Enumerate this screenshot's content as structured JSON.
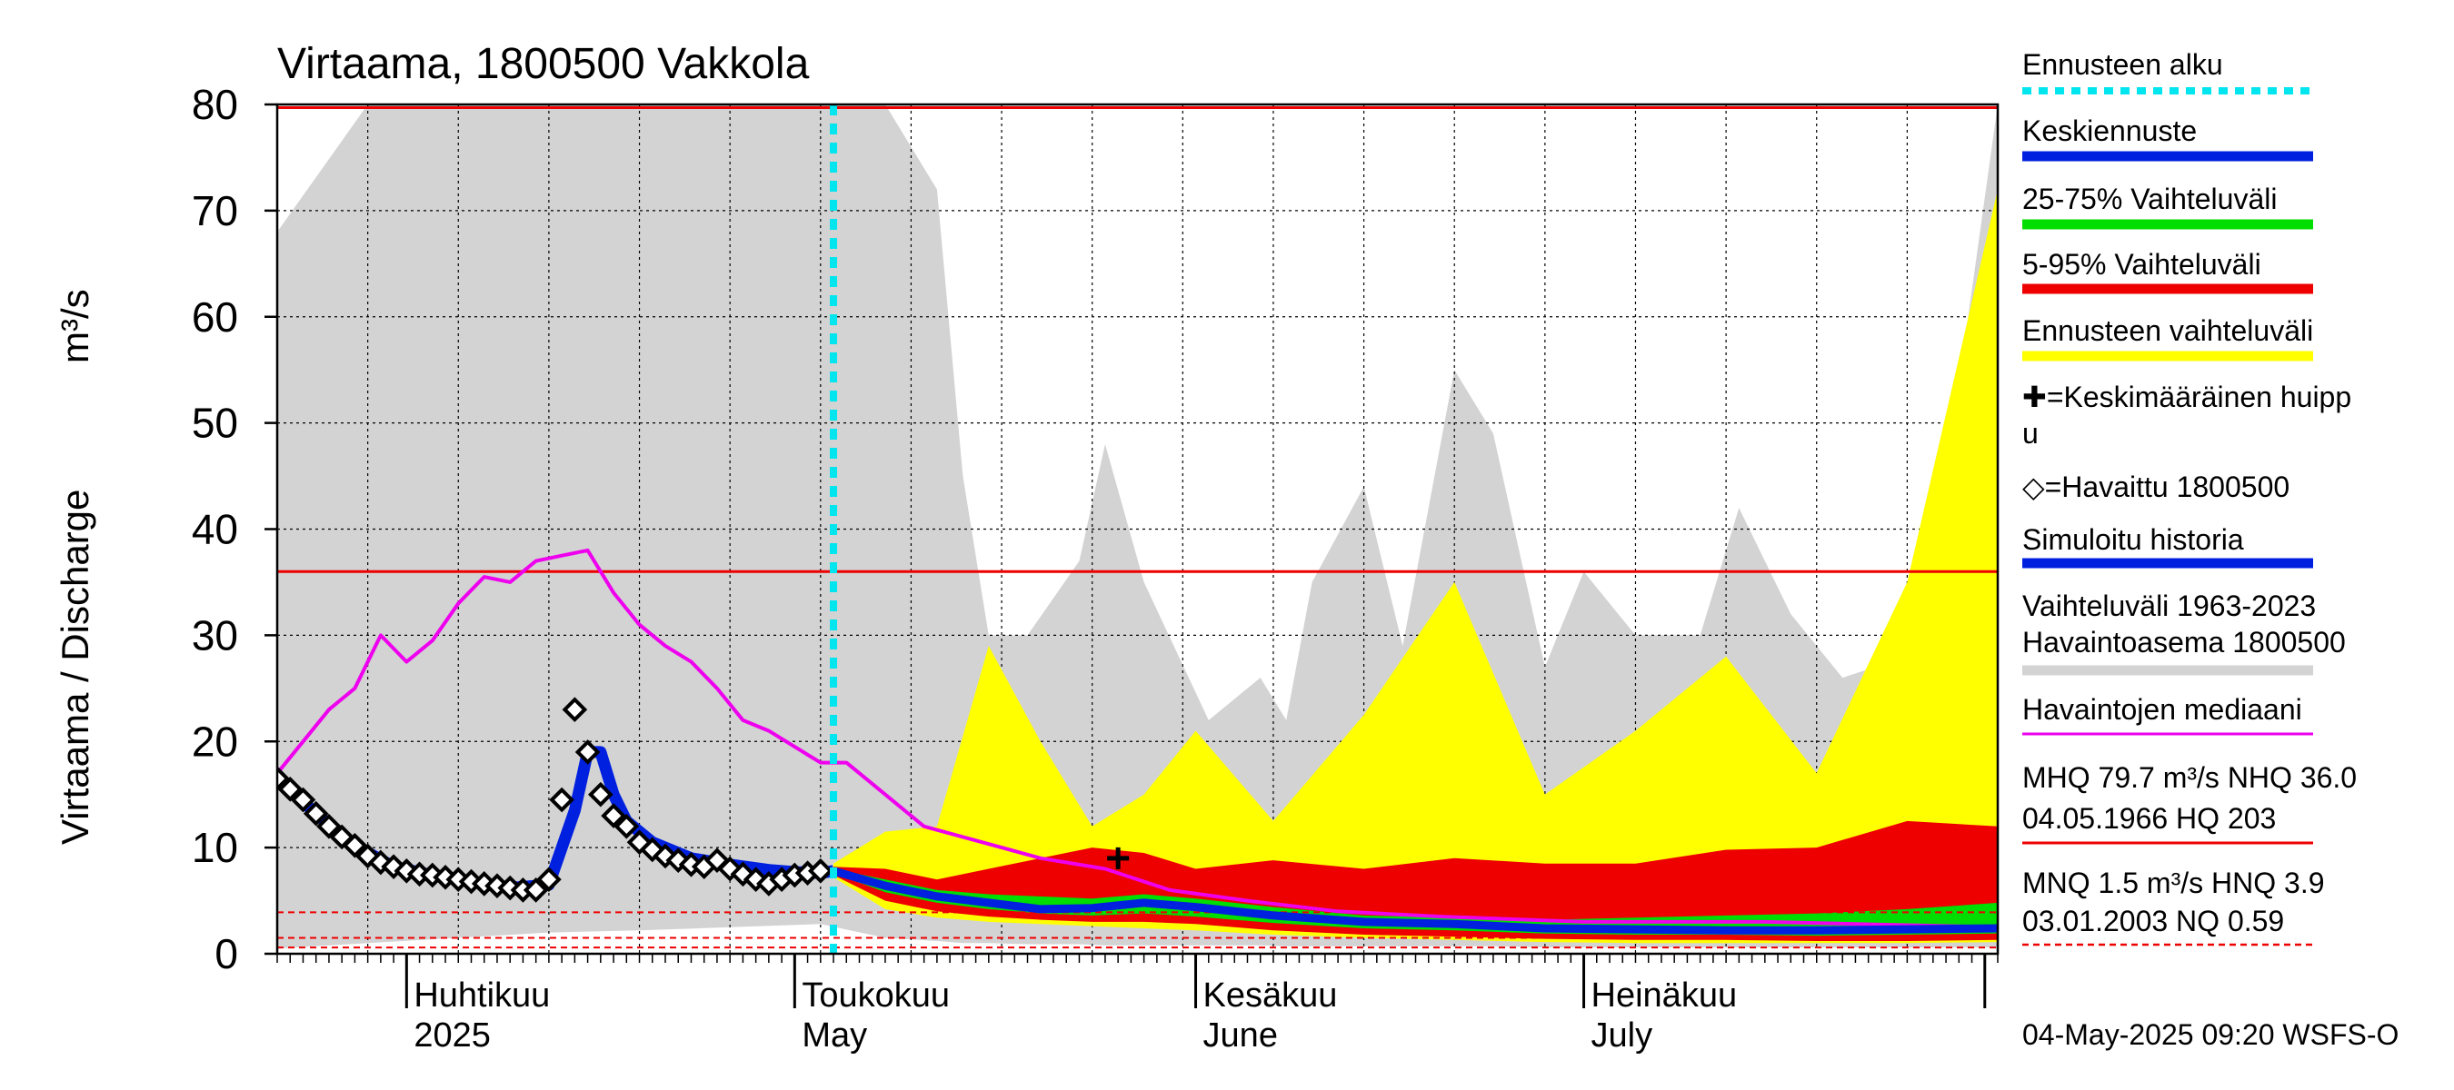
{
  "title": "Virtaama, 1800500 Vakkola",
  "y_label_left": "Virtaama / Discharge",
  "y_label_unit": "m³/s",
  "x_labels": [
    {
      "line1": "Huhtikuu",
      "line2": "2025"
    },
    {
      "line1": "Toukokuu",
      "line2": "May"
    },
    {
      "line1": "Kesäkuu",
      "line2": "June"
    },
    {
      "line1": "Heinäkuu",
      "line2": "July"
    }
  ],
  "legend": [
    {
      "text": "Ennusteen alku",
      "color": "#00e5ee",
      "style": "dotted"
    },
    {
      "text": "Keskiennuste",
      "color": "#0020e0",
      "style": "solid"
    },
    {
      "text": "25-75% Vaihteluväli",
      "color": "#00dd00",
      "style": "solid"
    },
    {
      "text": "5-95% Vaihteluväli",
      "color": "#ee0000",
      "style": "solid"
    },
    {
      "text": "Ennusteen vaihteluväli",
      "color": "#ffff00",
      "style": "solid"
    },
    {
      "text": "✚=Keskimääräinen huipp",
      "text2": "u",
      "style": "none"
    },
    {
      "text": "◇=Havaittu 1800500",
      "style": "none"
    },
    {
      "text": "Simuloitu historia",
      "color": "#0020e0",
      "style": "solid"
    },
    {
      "text": "Vaihteluväli 1963-2023",
      "text2": " Havaintoasema 1800500",
      "color": "#d3d3d3",
      "style": "solid"
    },
    {
      "text": "Havaintojen mediaani",
      "color": "#ee00ee",
      "style": "solid"
    },
    {
      "text": "MHQ 79.7 m³/s NHQ 36.0",
      "text2": "04.05.1966 HQ  203",
      "color": "#ee0000",
      "style": "solid"
    },
    {
      "text": "MNQ  1.5 m³/s HNQ  3.9",
      "text2": "03.01.2003 NQ 0.59",
      "color": "#ee0000",
      "style": "dashed"
    }
  ],
  "footer": "04-May-2025 09:20 WSFS-O",
  "chart_data": {
    "type": "line",
    "title": "Virtaama, 1800500 Vakkola",
    "ylabel": "Virtaama / Discharge m³/s",
    "ylim": [
      0,
      80
    ],
    "yticks": [
      0,
      10,
      20,
      30,
      40,
      50,
      60,
      70,
      80
    ],
    "x_range": [
      "2025-03-22",
      "2025-08-02"
    ],
    "forecast_start": "2025-05-04",
    "reference_lines": {
      "MHQ": 79.7,
      "NHQ": 36.0,
      "MNQ": 1.5,
      "HNQ": 3.9,
      "NQ": 0.59
    },
    "mean_peak": {
      "date": "2025-05-26",
      "value": 9
    },
    "observed": {
      "dates": [
        "2025-03-22",
        "2025-03-23",
        "2025-03-24",
        "2025-03-25",
        "2025-03-26",
        "2025-03-27",
        "2025-03-28",
        "2025-03-29",
        "2025-03-30",
        "2025-03-31",
        "2025-04-01",
        "2025-04-02",
        "2025-04-03",
        "2025-04-04",
        "2025-04-05",
        "2025-04-06",
        "2025-04-07",
        "2025-04-08",
        "2025-04-09",
        "2025-04-10",
        "2025-04-11",
        "2025-04-12",
        "2025-04-13",
        "2025-04-14",
        "2025-04-15",
        "2025-04-16",
        "2025-04-17",
        "2025-04-18",
        "2025-04-19",
        "2025-04-20",
        "2025-04-21",
        "2025-04-22",
        "2025-04-23",
        "2025-04-24",
        "2025-04-25",
        "2025-04-26",
        "2025-04-27",
        "2025-04-28",
        "2025-04-29",
        "2025-04-30",
        "2025-05-01",
        "2025-05-02",
        "2025-05-03"
      ],
      "values": [
        16.5,
        15.5,
        14.5,
        13.2,
        12,
        11,
        10.2,
        9.2,
        8.6,
        8.2,
        7.8,
        7.5,
        7.4,
        7.2,
        7,
        6.8,
        6.6,
        6.4,
        6.2,
        6,
        6,
        7,
        14.5,
        23,
        19,
        15,
        13,
        12,
        10.5,
        9.8,
        9.2,
        8.8,
        8.4,
        8.2,
        8.8,
        8,
        7.5,
        7,
        6.6,
        7,
        7.4,
        7.6,
        7.8
      ]
    },
    "simulated_history": {
      "dates": [
        "2025-03-22",
        "2025-03-25",
        "2025-03-28",
        "2025-03-31",
        "2025-04-03",
        "2025-04-06",
        "2025-04-09",
        "2025-04-12",
        "2025-04-14",
        "2025-04-15",
        "2025-04-16",
        "2025-04-17",
        "2025-04-18",
        "2025-04-20",
        "2025-04-23",
        "2025-04-26",
        "2025-04-29",
        "2025-05-01",
        "2025-05-03",
        "2025-05-04"
      ],
      "values": [
        16.5,
        13.2,
        10.2,
        8.2,
        7.4,
        6.8,
        6.2,
        6.5,
        13.5,
        19,
        19,
        15,
        12.5,
        10.5,
        9,
        8.4,
        7.9,
        7.7,
        7.6,
        7.8
      ]
    },
    "median_observed": {
      "dates": [
        "2025-03-22",
        "2025-03-24",
        "2025-03-26",
        "2025-03-28",
        "2025-03-30",
        "2025-04-01",
        "2025-04-03",
        "2025-04-05",
        "2025-04-07",
        "2025-04-09",
        "2025-04-11",
        "2025-04-13",
        "2025-04-15",
        "2025-04-17",
        "2025-04-19",
        "2025-04-21",
        "2025-04-23",
        "2025-04-25",
        "2025-04-27",
        "2025-04-29",
        "2025-05-01",
        "2025-05-03",
        "2025-05-05",
        "2025-05-08",
        "2025-05-11",
        "2025-05-14",
        "2025-05-17",
        "2025-05-20",
        "2025-05-25",
        "2025-05-30",
        "2025-06-05",
        "2025-06-12",
        "2025-06-20",
        "2025-07-01",
        "2025-07-15",
        "2025-08-02"
      ],
      "values": [
        17,
        20,
        23,
        25,
        30,
        27.5,
        29.5,
        33,
        35.5,
        35,
        37,
        37.5,
        38,
        34,
        31,
        29,
        27.5,
        25,
        22,
        21,
        19.5,
        18,
        18,
        15,
        12,
        11,
        10,
        9,
        8,
        6,
        5,
        4,
        3.5,
        3,
        3,
        2.5
      ]
    },
    "forecast_mean": {
      "dates": [
        "2025-05-04",
        "2025-05-08",
        "2025-05-12",
        "2025-05-16",
        "2025-05-20",
        "2025-05-24",
        "2025-05-28",
        "2025-06-01",
        "2025-06-07",
        "2025-06-14",
        "2025-06-21",
        "2025-06-28",
        "2025-07-05",
        "2025-07-12",
        "2025-07-19",
        "2025-07-26",
        "2025-08-02"
      ],
      "values": [
        7.8,
        6.4,
        5.4,
        4.8,
        4.2,
        4.3,
        4.8,
        4.4,
        3.6,
        3,
        2.8,
        2.4,
        2.3,
        2.2,
        2.2,
        2.3,
        2.4
      ]
    },
    "forecast_bands": {
      "dates": [
        "2025-05-04",
        "2025-05-08",
        "2025-05-12",
        "2025-05-16",
        "2025-05-20",
        "2025-05-24",
        "2025-05-28",
        "2025-06-01",
        "2025-06-07",
        "2025-06-14",
        "2025-06-21",
        "2025-06-28",
        "2025-07-05",
        "2025-07-12",
        "2025-07-19",
        "2025-07-26",
        "2025-08-02"
      ],
      "p25": [
        7.6,
        5.8,
        4.8,
        4.2,
        3.8,
        3.6,
        3.8,
        3.5,
        2.9,
        2.4,
        2.2,
        1.9,
        1.8,
        1.8,
        1.7,
        1.8,
        1.9
      ],
      "p75": [
        8,
        7,
        6,
        5.6,
        5.4,
        5.2,
        5.6,
        5.2,
        4.4,
        3.6,
        3.4,
        3.2,
        3.4,
        3.6,
        3.8,
        4.2,
        4.8
      ],
      "p5": [
        7.4,
        5,
        4,
        3.5,
        3.2,
        3,
        3,
        2.8,
        2.2,
        1.8,
        1.6,
        1.4,
        1.3,
        1.3,
        1.2,
        1.2,
        1.3
      ],
      "p95": [
        8.2,
        8,
        7,
        8,
        9,
        10,
        9.5,
        8,
        8.8,
        8,
        9,
        8.5,
        8.5,
        9.8,
        10,
        12.5,
        12
      ],
      "fmin": [
        7.2,
        4.2,
        3.4,
        3,
        2.8,
        2.6,
        2.4,
        2.2,
        1.8,
        1.5,
        1.3,
        1.1,
        1,
        1,
        1,
        1,
        1.1
      ],
      "fmax": [
        8.5,
        11.5,
        12,
        29,
        20,
        12,
        15,
        21,
        12.5,
        22.5,
        35,
        15,
        21,
        28,
        17,
        35,
        72
      ]
    },
    "historical_range": {
      "dates": [
        "2025-03-22",
        "2025-03-29",
        "2025-04-05",
        "2025-04-12",
        "2025-04-19",
        "2025-04-26",
        "2025-05-03",
        "2025-05-08",
        "2025-05-12",
        "2025-05-14",
        "2025-05-16",
        "2025-05-19",
        "2025-05-23",
        "2025-05-25",
        "2025-05-28",
        "2025-06-02",
        "2025-06-06",
        "2025-06-08",
        "2025-06-10",
        "2025-06-14",
        "2025-06-17",
        "2025-06-21",
        "2025-06-24",
        "2025-06-28",
        "2025-07-01",
        "2025-07-05",
        "2025-07-10",
        "2025-07-13",
        "2025-07-17",
        "2025-07-21",
        "2025-07-26",
        "2025-07-29",
        "2025-08-02"
      ],
      "min": [
        0.5,
        1,
        1.5,
        2,
        2.2,
        2.5,
        2.8,
        1.5,
        1.2,
        1,
        1,
        0.9,
        0.9,
        0.8,
        0.8,
        0.8,
        0.8,
        0.7,
        0.7,
        0.7,
        0.7,
        0.7,
        0.7,
        0.6,
        0.6,
        0.6,
        0.6,
        0.6,
        0.6,
        0.6,
        0.6,
        0.6,
        0.6
      ],
      "max": [
        68,
        80,
        80,
        80,
        80,
        80,
        80,
        80,
        72,
        45,
        30,
        30,
        37,
        48,
        35,
        22,
        26,
        22,
        35,
        44,
        29,
        55,
        49,
        27,
        36,
        30,
        30,
        42,
        32,
        26,
        28,
        45,
        80
      ]
    }
  }
}
